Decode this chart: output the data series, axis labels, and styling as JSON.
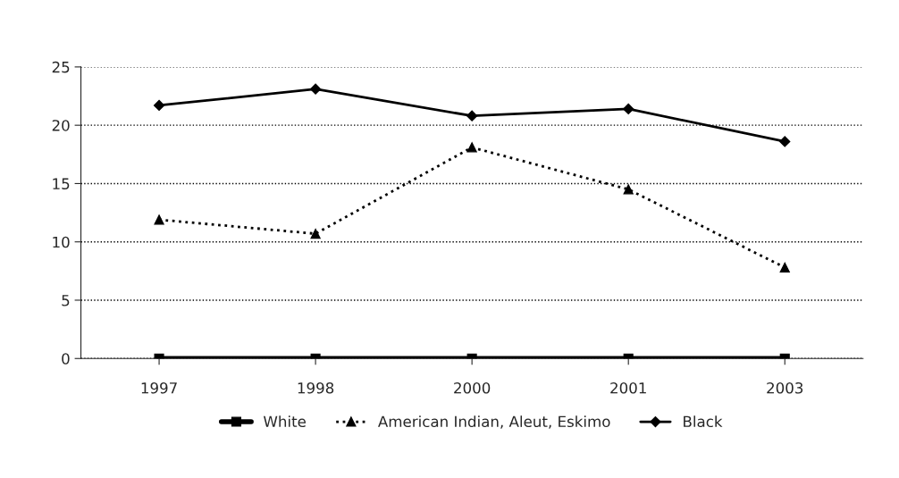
{
  "chart_data": {
    "type": "line",
    "categories": [
      "1997",
      "1998",
      "2000",
      "2001",
      "2003"
    ],
    "series": [
      {
        "name": "White",
        "color": "#000000",
        "values": [
          0,
          0,
          0,
          0,
          0
        ],
        "marker": "square",
        "line_style": "solid"
      },
      {
        "name": "American Indian, Aleut, Eskimo",
        "color": "#000000",
        "values": [
          11.9,
          10.7,
          18.1,
          14.5,
          7.8
        ],
        "marker": "triangle",
        "line_style": "dotted"
      },
      {
        "name": "Black",
        "color": "#000000",
        "values": [
          21.7,
          23.1,
          20.8,
          21.4,
          18.6
        ],
        "marker": "diamond",
        "line_style": "solid"
      }
    ],
    "ylim": [
      0,
      25
    ],
    "yticks": [
      0,
      5,
      10,
      15,
      20,
      25
    ],
    "grid": "y",
    "legend": "bottom"
  }
}
